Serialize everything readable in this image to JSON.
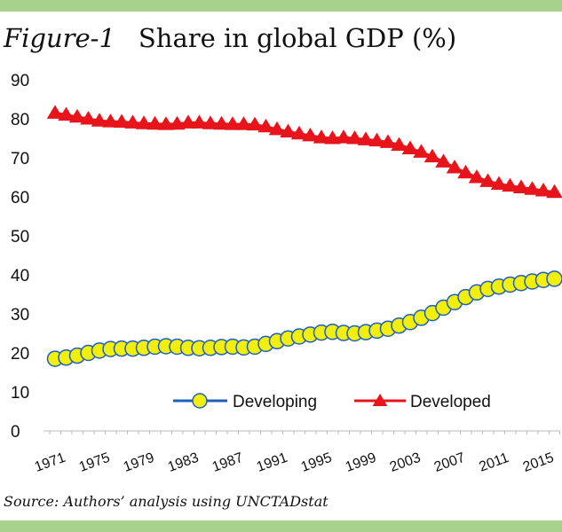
{
  "header": {
    "figure_label": "Figure-1",
    "title": "Share in global GDP (%)"
  },
  "footer": {
    "source": "Source: Authors’ analysis using UNCTADstat"
  },
  "colors": {
    "frame_bar": "#a9d18e",
    "developing_fill": "#f2ef0f",
    "developing_line": "#1f5fbf",
    "developed": "#e8141b"
  },
  "chart_data": {
    "type": "line",
    "title": "Share in global GDP (%)",
    "xlabel": "",
    "ylabel": "",
    "ylim": [
      0,
      90
    ],
    "yticks": [
      "0",
      "10",
      "20",
      "30",
      "40",
      "50",
      "60",
      "70",
      "80",
      "90"
    ],
    "x": [
      1971,
      1972,
      1973,
      1974,
      1975,
      1976,
      1977,
      1978,
      1979,
      1980,
      1981,
      1982,
      1983,
      1984,
      1985,
      1986,
      1987,
      1988,
      1989,
      1990,
      1991,
      1992,
      1993,
      1994,
      1995,
      1996,
      1997,
      1998,
      1999,
      2000,
      2001,
      2002,
      2003,
      2004,
      2005,
      2006,
      2007,
      2008,
      2009,
      2010,
      2011,
      2012,
      2013,
      2014,
      2015,
      2016
    ],
    "xtick_labels": [
      "1971",
      "1975",
      "1979",
      "1983",
      "1987",
      "1991",
      "1995",
      "1999",
      "2003",
      "2007",
      "2011",
      "2015"
    ],
    "grid": false,
    "legend_placement": "bottom-center",
    "series": [
      {
        "name": "Developing",
        "marker": "circle",
        "values": [
          18.5,
          18.8,
          19.3,
          20.0,
          20.6,
          21.0,
          21.1,
          21.1,
          21.3,
          21.6,
          21.7,
          21.6,
          21.3,
          21.2,
          21.3,
          21.5,
          21.6,
          21.4,
          21.6,
          22.3,
          23.0,
          23.7,
          24.2,
          24.7,
          25.2,
          25.4,
          25.1,
          25.0,
          25.3,
          25.7,
          26.2,
          27.0,
          27.9,
          29.0,
          30.2,
          31.6,
          33.0,
          34.3,
          35.5,
          36.4,
          37.0,
          37.5,
          37.9,
          38.3,
          38.7,
          39.0
        ]
      },
      {
        "name": "Developed",
        "marker": "triangle",
        "values": [
          81.5,
          81.0,
          80.5,
          80.0,
          79.5,
          79.3,
          79.2,
          79.0,
          78.8,
          78.7,
          78.6,
          78.7,
          79.0,
          79.0,
          78.8,
          78.7,
          78.6,
          78.6,
          78.5,
          78.0,
          77.3,
          76.7,
          76.2,
          75.7,
          75.2,
          75.0,
          75.2,
          75.0,
          74.7,
          74.4,
          74.0,
          73.3,
          72.4,
          71.5,
          70.3,
          69.0,
          67.5,
          66.2,
          65.0,
          64.0,
          63.3,
          62.8,
          62.4,
          62.0,
          61.6,
          61.2
        ]
      }
    ]
  }
}
